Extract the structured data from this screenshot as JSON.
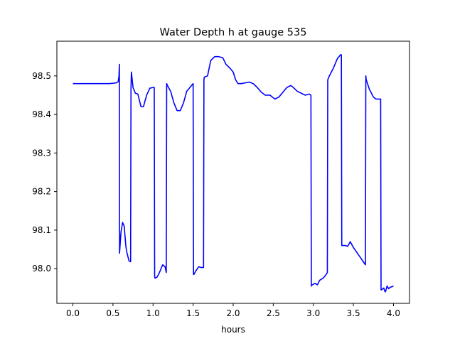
{
  "chart_data": {
    "type": "line",
    "title": "Water Depth h at gauge 535",
    "xlabel": "hours",
    "ylabel": "",
    "xlim": [
      -0.2,
      4.2
    ],
    "ylim": [
      97.91,
      98.59
    ],
    "xticks": [
      0.0,
      0.5,
      1.0,
      1.5,
      2.0,
      2.5,
      3.0,
      3.5,
      4.0
    ],
    "xtick_labels": [
      "0.0",
      "0.5",
      "1.0",
      "1.5",
      "2.0",
      "2.5",
      "3.0",
      "3.5",
      "4.0"
    ],
    "yticks": [
      98.0,
      98.1,
      98.2,
      98.3,
      98.4,
      98.5
    ],
    "ytick_labels": [
      "98.0",
      "98.1",
      "98.2",
      "98.3",
      "98.4",
      "98.5"
    ],
    "grid": false,
    "legend": "none",
    "series": [
      {
        "color": "#0000ff",
        "x": [
          0.0,
          0.3,
          0.45,
          0.5,
          0.54,
          0.565,
          0.575,
          0.58,
          0.582,
          0.6,
          0.62,
          0.64,
          0.66,
          0.67,
          0.7,
          0.72,
          0.725,
          0.73,
          0.735,
          0.75,
          0.78,
          0.81,
          0.85,
          0.88,
          0.92,
          0.96,
          1.0,
          1.015,
          1.02,
          1.025,
          1.05,
          1.08,
          1.12,
          1.15,
          1.165,
          1.17,
          1.18,
          1.22,
          1.26,
          1.3,
          1.34,
          1.38,
          1.42,
          1.46,
          1.5,
          1.505,
          1.51,
          1.53,
          1.57,
          1.6,
          1.62,
          1.63,
          1.635,
          1.64,
          1.68,
          1.72,
          1.77,
          1.82,
          1.87,
          1.91,
          1.96,
          2.0,
          2.03,
          2.06,
          2.1,
          2.15,
          2.2,
          2.25,
          2.3,
          2.35,
          2.4,
          2.46,
          2.52,
          2.57,
          2.63,
          2.67,
          2.72,
          2.75,
          2.8,
          2.9,
          2.95,
          2.97,
          2.975,
          2.98,
          3.02,
          3.05,
          3.08,
          3.12,
          3.15,
          3.175,
          3.18,
          3.2,
          3.25,
          3.3,
          3.34,
          3.35,
          3.355,
          3.36,
          3.4,
          3.43,
          3.46,
          3.5,
          3.55,
          3.6,
          3.65,
          3.655,
          3.66,
          3.7,
          3.75,
          3.78,
          3.82,
          3.84,
          3.845,
          3.85,
          3.87,
          3.88,
          3.89,
          3.9,
          3.91,
          3.92,
          3.94,
          3.96,
          3.98,
          4.0
        ],
        "y": [
          98.48,
          98.48,
          98.48,
          98.481,
          98.482,
          98.485,
          98.5,
          98.53,
          98.04,
          98.095,
          98.12,
          98.11,
          98.06,
          98.045,
          98.02,
          98.018,
          98.47,
          98.51,
          98.5,
          98.47,
          98.455,
          98.453,
          98.42,
          98.42,
          98.45,
          98.468,
          98.47,
          98.47,
          97.98,
          97.975,
          97.978,
          97.99,
          98.01,
          98.005,
          97.99,
          98.48,
          98.475,
          98.46,
          98.43,
          98.41,
          98.41,
          98.43,
          98.46,
          98.47,
          98.48,
          97.985,
          97.985,
          97.993,
          98.005,
          98.003,
          98.003,
          98.003,
          98.49,
          98.497,
          98.5,
          98.54,
          98.55,
          98.55,
          98.547,
          98.53,
          98.52,
          98.51,
          98.49,
          98.48,
          98.48,
          98.482,
          98.484,
          98.48,
          98.47,
          98.458,
          98.45,
          98.45,
          98.44,
          98.445,
          98.46,
          98.47,
          98.475,
          98.47,
          98.46,
          98.45,
          98.453,
          98.45,
          97.955,
          97.957,
          97.962,
          97.958,
          97.97,
          97.975,
          97.982,
          97.99,
          98.49,
          98.5,
          98.52,
          98.545,
          98.555,
          98.555,
          98.06,
          98.06,
          98.06,
          98.058,
          98.07,
          98.055,
          98.04,
          98.025,
          98.01,
          98.5,
          98.49,
          98.465,
          98.445,
          98.44,
          98.44,
          98.44,
          97.945,
          97.945,
          97.948,
          97.95,
          97.942,
          97.94,
          97.947,
          97.955,
          97.948,
          97.952,
          97.953,
          97.955
        ]
      }
    ]
  }
}
